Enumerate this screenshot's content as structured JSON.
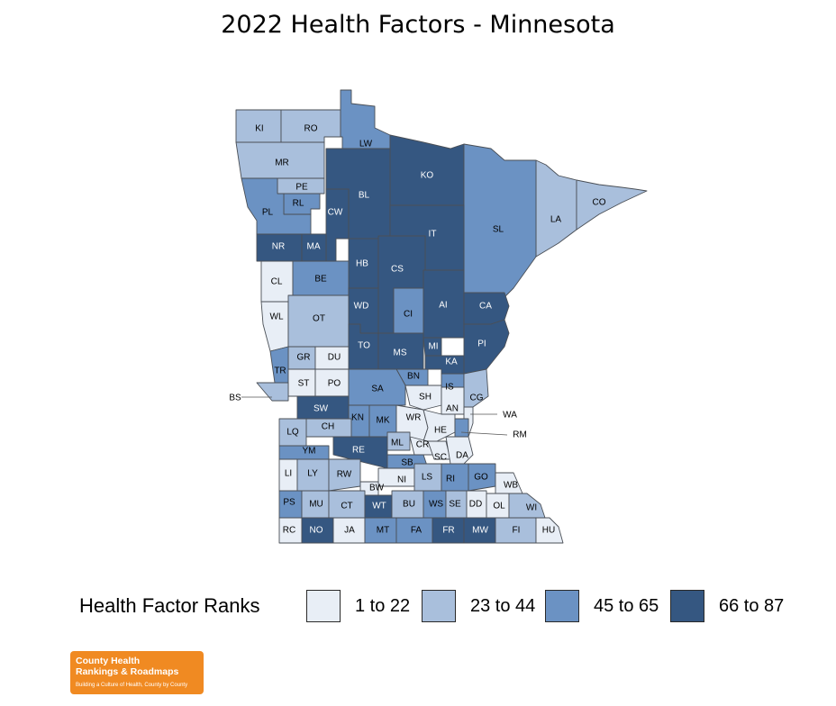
{
  "title": "2022 Health Factors - Minnesota",
  "legend": {
    "title": "Health Factor Ranks",
    "items": [
      {
        "label": "1 to 22",
        "color": "#e8eef6"
      },
      {
        "label": "23 to 44",
        "color": "#a9bfdc"
      },
      {
        "label": "45 to 65",
        "color": "#6b92c3"
      },
      {
        "label": "66 to 87",
        "color": "#355781"
      }
    ]
  },
  "logo": {
    "line1": "County Health",
    "line2": "Rankings & Roadmaps",
    "tagline": "Building a Culture of Health, County by County"
  },
  "counties": [
    {
      "abbr": "KI",
      "class": 2
    },
    {
      "abbr": "RO",
      "class": 2
    },
    {
      "abbr": "LW",
      "class": 3
    },
    {
      "abbr": "MR",
      "class": 2
    },
    {
      "abbr": "KO",
      "class": 4
    },
    {
      "abbr": "PE",
      "class": 2
    },
    {
      "abbr": "RL",
      "class": 3
    },
    {
      "abbr": "PL",
      "class": 3
    },
    {
      "abbr": "BL",
      "class": 4
    },
    {
      "abbr": "CW",
      "class": 4
    },
    {
      "abbr": "LA",
      "class": 2
    },
    {
      "abbr": "CO",
      "class": 2
    },
    {
      "abbr": "SL",
      "class": 3
    },
    {
      "abbr": "IT",
      "class": 4
    },
    {
      "abbr": "NR",
      "class": 4
    },
    {
      "abbr": "MA",
      "class": 4
    },
    {
      "abbr": "HB",
      "class": 4
    },
    {
      "abbr": "CS",
      "class": 4
    },
    {
      "abbr": "CL",
      "class": 1
    },
    {
      "abbr": "BE",
      "class": 3
    },
    {
      "abbr": "WD",
      "class": 4
    },
    {
      "abbr": "CI",
      "class": 3
    },
    {
      "abbr": "AI",
      "class": 4
    },
    {
      "abbr": "CA",
      "class": 4
    },
    {
      "abbr": "WL",
      "class": 1
    },
    {
      "abbr": "OT",
      "class": 2
    },
    {
      "abbr": "TO",
      "class": 4
    },
    {
      "abbr": "MS",
      "class": 4
    },
    {
      "abbr": "MI",
      "class": 4
    },
    {
      "abbr": "PI",
      "class": 4
    },
    {
      "abbr": "GR",
      "class": 2
    },
    {
      "abbr": "DU",
      "class": 1
    },
    {
      "abbr": "TR",
      "class": 3
    },
    {
      "abbr": "KA",
      "class": 4
    },
    {
      "abbr": "BN",
      "class": 3
    },
    {
      "abbr": "ST",
      "class": 1
    },
    {
      "abbr": "PO",
      "class": 1
    },
    {
      "abbr": "SA",
      "class": 3
    },
    {
      "abbr": "IS",
      "class": 3
    },
    {
      "abbr": "SH",
      "class": 1
    },
    {
      "abbr": "CG",
      "class": 2
    },
    {
      "abbr": "AN",
      "class": 1
    },
    {
      "abbr": "BS",
      "class": 2
    },
    {
      "abbr": "SW",
      "class": 4
    },
    {
      "abbr": "KN",
      "class": 3
    },
    {
      "abbr": "MK",
      "class": 3
    },
    {
      "abbr": "WR",
      "class": 1
    },
    {
      "abbr": "HE",
      "class": 1
    },
    {
      "abbr": "WA",
      "class": 1
    },
    {
      "abbr": "RM",
      "class": 3
    },
    {
      "abbr": "CH",
      "class": 2
    },
    {
      "abbr": "LQ",
      "class": 2
    },
    {
      "abbr": "ML",
      "class": 2
    },
    {
      "abbr": "CR",
      "class": 1
    },
    {
      "abbr": "SC",
      "class": 1
    },
    {
      "abbr": "DA",
      "class": 1
    },
    {
      "abbr": "RE",
      "class": 4
    },
    {
      "abbr": "YM",
      "class": 3
    },
    {
      "abbr": "SB",
      "class": 3
    },
    {
      "abbr": "LI",
      "class": 1
    },
    {
      "abbr": "LY",
      "class": 2
    },
    {
      "abbr": "RW",
      "class": 2
    },
    {
      "abbr": "NI",
      "class": 1
    },
    {
      "abbr": "LS",
      "class": 2
    },
    {
      "abbr": "RI",
      "class": 3
    },
    {
      "abbr": "GO",
      "class": 3
    },
    {
      "abbr": "WB",
      "class": 1
    },
    {
      "abbr": "BW",
      "class": 1
    },
    {
      "abbr": "PS",
      "class": 3
    },
    {
      "abbr": "MU",
      "class": 2
    },
    {
      "abbr": "CT",
      "class": 2
    },
    {
      "abbr": "WT",
      "class": 4
    },
    {
      "abbr": "BU",
      "class": 2
    },
    {
      "abbr": "WS",
      "class": 3
    },
    {
      "abbr": "SE",
      "class": 2
    },
    {
      "abbr": "DD",
      "class": 1
    },
    {
      "abbr": "OL",
      "class": 1
    },
    {
      "abbr": "WI",
      "class": 2
    },
    {
      "abbr": "RC",
      "class": 1
    },
    {
      "abbr": "NO",
      "class": 4
    },
    {
      "abbr": "JA",
      "class": 1
    },
    {
      "abbr": "MT",
      "class": 3
    },
    {
      "abbr": "FA",
      "class": 3
    },
    {
      "abbr": "FR",
      "class": 4
    },
    {
      "abbr": "MW",
      "class": 4
    },
    {
      "abbr": "FI",
      "class": 2
    },
    {
      "abbr": "HU",
      "class": 1
    }
  ]
}
